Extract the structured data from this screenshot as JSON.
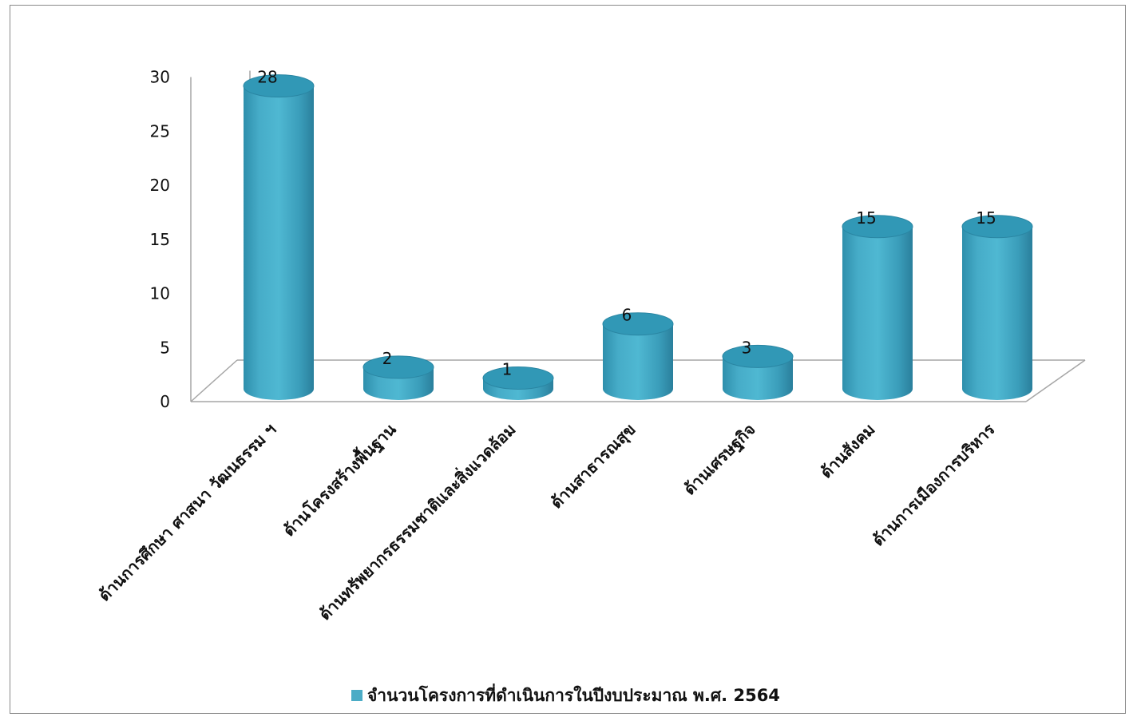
{
  "chart_data": {
    "type": "bar",
    "style": "3d-cylinder",
    "categories": [
      "ด้านการศึกษา ศาสนา วัฒนธรรม ฯ",
      "ด้านโครงสร้างพื้นฐาน",
      "ด้านทรัพยากรธรรมชาติและสิ่งแวดล้อม",
      "ด้านสาธารณสุข",
      "ด้านเศรษฐกิจ",
      "ด้านสังคม",
      "ด้านการเมืองการบริหาร"
    ],
    "series": [
      {
        "name": "จำนวนโครงการที่ดำเนินการในปีงบประมาณ พ.ศ. 2564",
        "values": [
          28,
          2,
          1,
          6,
          3,
          15,
          15
        ]
      }
    ],
    "data_labels": [
      "28",
      "2",
      "1",
      "6",
      "3",
      "15",
      "15"
    ],
    "y_ticks": [
      "0",
      "5",
      "10",
      "15",
      "20",
      "25",
      "30"
    ],
    "ylim": [
      0,
      30
    ],
    "legend_position": "bottom",
    "grid": false,
    "colors": {
      "bar_body": "#4BB4CF",
      "bar_dark": "#2C8CAA",
      "bar_top": "#3198B6",
      "axis": "#a6a6a6",
      "legend_swatch": "#4BACC6"
    }
  }
}
